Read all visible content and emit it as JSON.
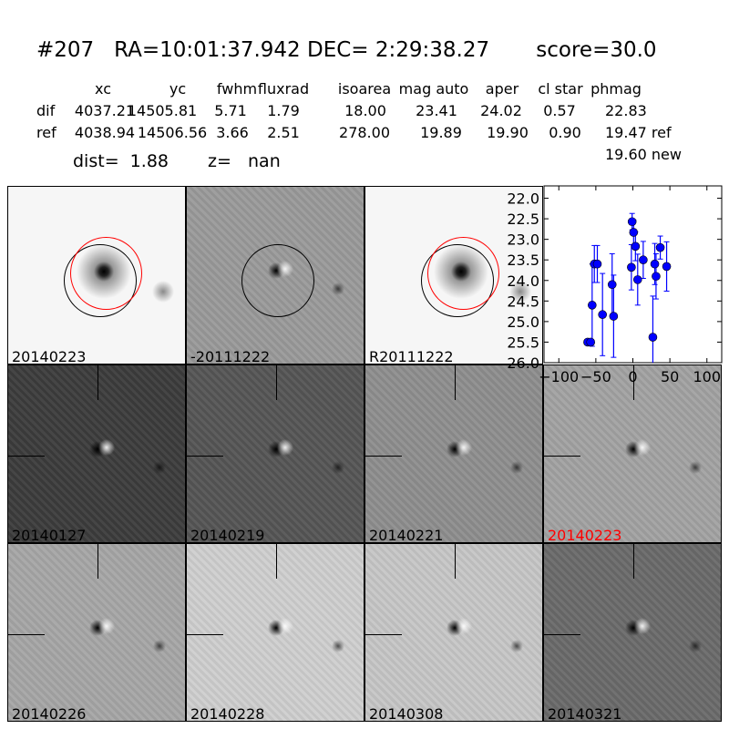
{
  "header": {
    "title": "#207   RA=10:01:37.942 DEC= 2:29:38.27       score=30.0"
  },
  "table": {
    "columns": [
      "xc",
      "yc",
      "fwhm",
      "fluxrad",
      "isoarea",
      "mag auto",
      "aper",
      "cl star",
      "phmag"
    ],
    "rows": [
      {
        "label": "dif",
        "values": [
          "4037.21",
          "14505.81",
          "5.71",
          "1.79",
          "18.00",
          "23.41",
          "24.02",
          "0.57",
          "22.83"
        ]
      },
      {
        "label": "ref",
        "values": [
          "4038.94",
          "14506.56",
          "3.66",
          "2.51",
          "278.00",
          "19.89",
          "19.90",
          "0.90",
          "19.47 ref"
        ]
      }
    ],
    "extra": "19.60 new",
    "dist": "dist=  1.88",
    "z": "z=   nan"
  },
  "panels": [
    {
      "label": "20140223",
      "tone": "#f6f6f6",
      "kind": "ref"
    },
    {
      "label": "-20111222",
      "tone": "#9a9a9a",
      "kind": "dif"
    },
    {
      "label": "R20111222",
      "tone": "#f6f6f6",
      "kind": "ref2"
    },
    {
      "label": "20140127",
      "tone": "#3c3c3c",
      "kind": "stamp"
    },
    {
      "label": "20140219",
      "tone": "#555555",
      "kind": "stamp"
    },
    {
      "label": "20140221",
      "tone": "#8e8e8e",
      "kind": "stamp"
    },
    {
      "label": "20140223",
      "tone": "#a2a2a2",
      "kind": "stamp",
      "label_color": "#ff0000"
    },
    {
      "label": "20140226",
      "tone": "#a6a6a6",
      "kind": "stamp"
    },
    {
      "label": "20140228",
      "tone": "#cfcfcf",
      "kind": "stamp"
    },
    {
      "label": "20140308",
      "tone": "#c6c6c6",
      "kind": "stamp"
    },
    {
      "label": "20140321",
      "tone": "#6a6a6a",
      "kind": "stamp"
    }
  ],
  "chart_data": {
    "type": "scatter",
    "xlim": [
      -120,
      120
    ],
    "ylim": [
      26.0,
      21.7
    ],
    "y_inverted": true,
    "xticks": [
      "-100",
      "-50",
      "0",
      "50",
      "100"
    ],
    "yticks": [
      "22.0",
      "22.5",
      "23.0",
      "23.5",
      "24.0",
      "24.5",
      "25.0",
      "25.5",
      "26.0"
    ],
    "color": "#0000ff",
    "points": [
      {
        "x": -61,
        "y": 25.5,
        "err": 0.05
      },
      {
        "x": -57,
        "y": 25.5,
        "err": 0.05
      },
      {
        "x": -55,
        "y": 24.6,
        "err": 1.0
      },
      {
        "x": -52,
        "y": 23.6,
        "err": 0.45
      },
      {
        "x": -48,
        "y": 23.6,
        "err": 0.45
      },
      {
        "x": -41,
        "y": 24.83,
        "err": 1.0
      },
      {
        "x": -28,
        "y": 24.1,
        "err": 0.75
      },
      {
        "x": -26,
        "y": 24.87,
        "err": 1.0
      },
      {
        "x": -1,
        "y": 22.57,
        "err": 0.2
      },
      {
        "x": -2,
        "y": 23.68,
        "err": 0.55
      },
      {
        "x": 1,
        "y": 22.83,
        "err": 0.3
      },
      {
        "x": 3.5,
        "y": 23.17,
        "err": 0.35
      },
      {
        "x": 6.5,
        "y": 23.98,
        "err": 0.62
      },
      {
        "x": 14,
        "y": 23.5,
        "err": 0.45
      },
      {
        "x": 27,
        "y": 25.38,
        "err": 1.0
      },
      {
        "x": 29.6,
        "y": 23.6,
        "err": 0.5
      },
      {
        "x": 31.3,
        "y": 23.9,
        "err": 0.55
      },
      {
        "x": 37,
        "y": 23.2,
        "err": 0.28
      },
      {
        "x": 45.6,
        "y": 23.66,
        "err": 0.6
      }
    ]
  }
}
